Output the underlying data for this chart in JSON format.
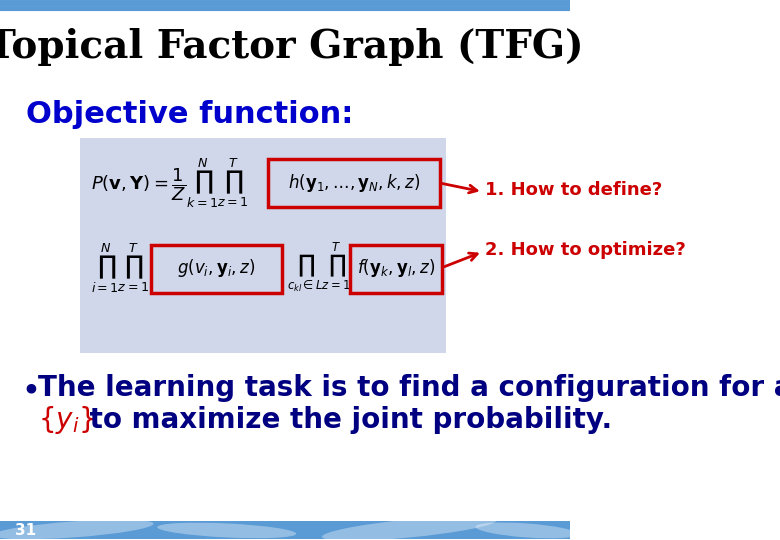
{
  "title": "Topical Factor Graph (TFG)",
  "title_fontsize": 28,
  "title_color": "#000000",
  "bg_color": "#ffffff",
  "objective_label": "Objective function:",
  "objective_color": "#0000CC",
  "objective_fontsize": 22,
  "formula_box_color": "#C8D0E8",
  "red_box_color": "#CC0000",
  "arrow_color": "#CC0000",
  "label1": "1. How to define?",
  "label2": "2. How to optimize?",
  "annotation_color": "#CC0000",
  "annotation_fontsize": 13,
  "bullet_text_line1": "The learning task is to find a configuration for all",
  "bullet_text_line2": " to maximize the joint probability.",
  "bullet_color_main": "#000080",
  "bullet_color_red": "#CC0000",
  "bullet_fontsize": 20,
  "slide_number": "31",
  "bottom_bar_color1": "#5B9BD5",
  "bottom_bar_color2": "#2E75B6"
}
